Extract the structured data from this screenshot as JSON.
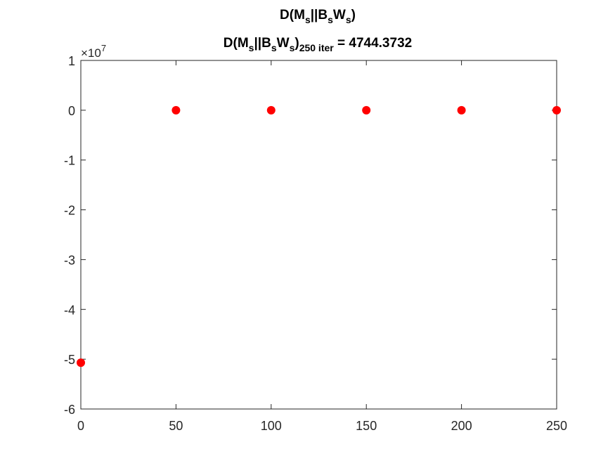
{
  "chart_data": {
    "type": "scatter",
    "title_line1": {
      "main": "D(M",
      "sub1": "s",
      "mid": "||B",
      "sub2": "s",
      "mid2": "W",
      "sub3": "s",
      "end": ")"
    },
    "title_line2": {
      "main": "D(M",
      "sub1": "s",
      "mid": "||B",
      "sub2": "s",
      "mid2": "W",
      "sub3": "s",
      "close": ")",
      "sub4": "250 iter",
      "value": " = 4744.3732"
    },
    "xlabel": "",
    "ylabel": "",
    "xlim": [
      0,
      250
    ],
    "ylim": [
      -6,
      1
    ],
    "y_exponent_base": "×10",
    "y_exponent_power": "7",
    "xticks": [
      0,
      50,
      100,
      150,
      200,
      250
    ],
    "yticks": [
      1,
      0,
      -1,
      -2,
      -3,
      -4,
      -5,
      -6
    ],
    "xtick_labels": [
      "0",
      "50",
      "100",
      "150",
      "200",
      "250"
    ],
    "ytick_labels": [
      "1",
      "0",
      "-1",
      "-2",
      "-3",
      "-4",
      "-5",
      "-6"
    ],
    "marker_color": "#ff0000",
    "series": [
      {
        "x": [
          0,
          50,
          100,
          150,
          200,
          250
        ],
        "y": [
          -5.07,
          0.0005,
          0.0005,
          0.0005,
          0.0005,
          0.0005
        ]
      }
    ],
    "grid": false
  }
}
